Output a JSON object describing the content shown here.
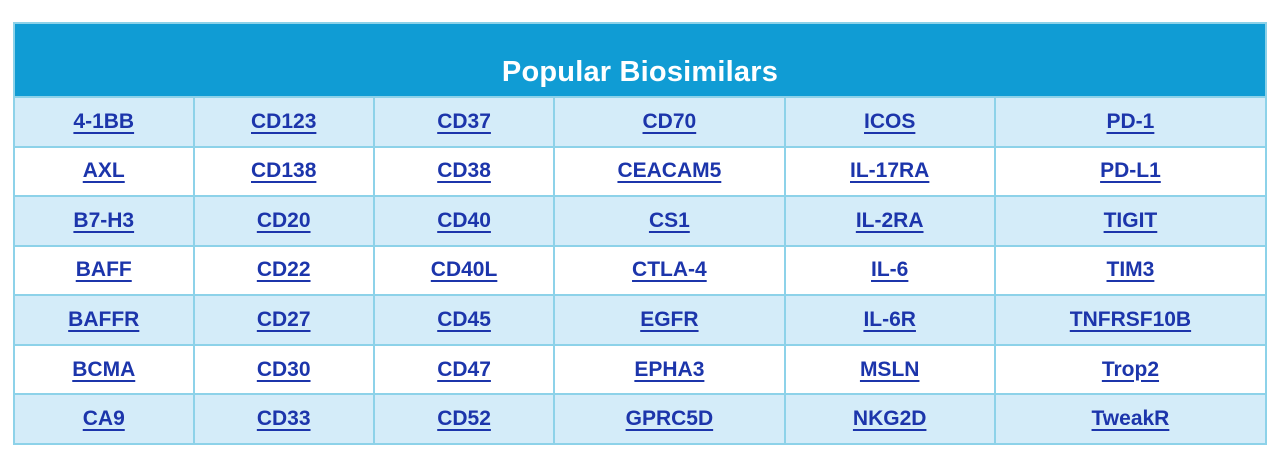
{
  "title": "Popular Biosimilars",
  "colors": {
    "header_bg": "#109cd4",
    "header_text": "#ffffff",
    "row_alt_bg": "#d4ecf9",
    "row_bg": "#ffffff",
    "border": "#8dd2e9",
    "link": "#1c35ab",
    "page_bg": "#ffffff"
  },
  "table": {
    "rows": [
      {
        "cells": [
          "4-1BB",
          "CD123",
          "CD37",
          "CD70",
          "ICOS",
          "PD-1"
        ]
      },
      {
        "cells": [
          "AXL",
          "CD138",
          "CD38",
          "CEACAM5",
          "IL-17RA",
          "PD-L1"
        ]
      },
      {
        "cells": [
          "B7-H3",
          "CD20",
          "CD40",
          "CS1",
          "IL-2RA",
          "TIGIT"
        ]
      },
      {
        "cells": [
          "BAFF",
          "CD22",
          "CD40L",
          "CTLA-4",
          "IL-6",
          "TIM3"
        ]
      },
      {
        "cells": [
          "BAFFR",
          "CD27",
          "CD45",
          "EGFR",
          "IL-6R",
          "TNFRSF10B"
        ]
      },
      {
        "cells": [
          "BCMA",
          "CD30",
          "CD47",
          "EPHA3",
          "MSLN",
          "Trop2"
        ]
      },
      {
        "cells": [
          "CA9",
          "CD33",
          "CD52",
          "GPRC5D",
          "NKG2D",
          "TweakR"
        ]
      }
    ]
  }
}
